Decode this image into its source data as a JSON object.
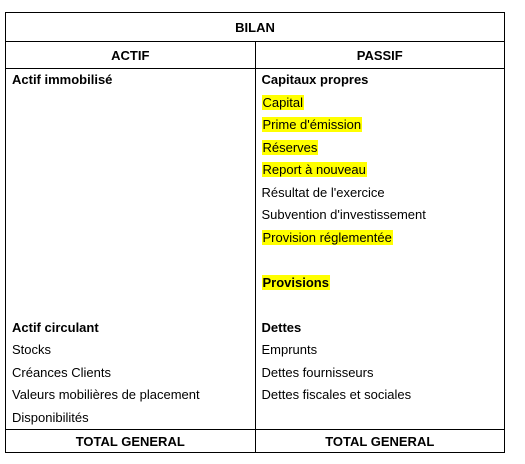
{
  "title": "BILAN",
  "headers": {
    "actif": "ACTIF",
    "passif": "PASSIF"
  },
  "actif": {
    "immobilise": {
      "heading": "Actif immobilisé"
    },
    "circulant": {
      "heading": "Actif circulant",
      "items": [
        "Stocks",
        "Créances Clients",
        "Valeurs mobilières de placement",
        "Disponibilités"
      ]
    }
  },
  "passif": {
    "capitaux_propres": {
      "heading": "Capitaux propres",
      "items": [
        {
          "label": "Capital",
          "highlight": true
        },
        {
          "label": "Prime d'émission",
          "highlight": true
        },
        {
          "label": "Réserves",
          "highlight": true
        },
        {
          "label": "Report à nouveau",
          "highlight": true
        },
        {
          "label": "Résultat de l'exercice",
          "highlight": false
        },
        {
          "label": "Subvention d'investissement",
          "highlight": false
        },
        {
          "label": "Provision réglementée",
          "highlight": true
        }
      ]
    },
    "provisions": {
      "heading": "Provisions",
      "highlight": true
    },
    "dettes": {
      "heading": "Dettes",
      "items": [
        "Emprunts",
        "Dettes fournisseurs",
        "Dettes fiscales et sociales"
      ]
    }
  },
  "totals": {
    "actif": "TOTAL GENERAL",
    "passif": "TOTAL GENERAL"
  },
  "colors": {
    "highlight": "#ffff00",
    "border": "#000000"
  }
}
